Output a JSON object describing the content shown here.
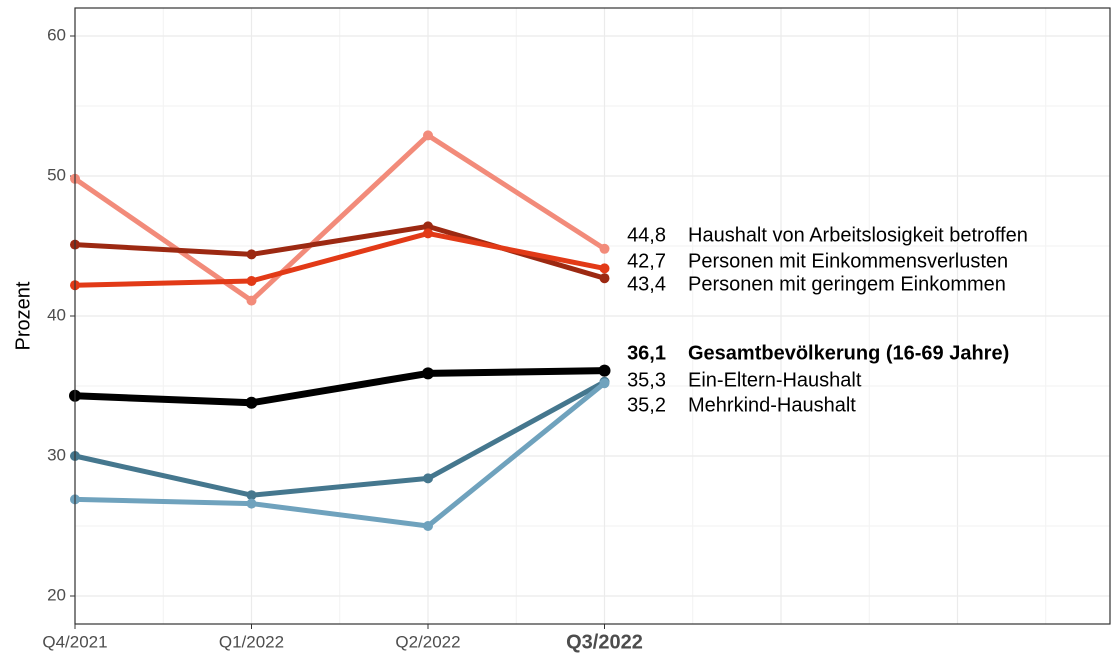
{
  "chart_data": {
    "type": "line",
    "y_label": "Prozent",
    "categories": [
      "Q4/2021",
      "Q1/2022",
      "Q2/2022",
      "Q3/2022"
    ],
    "series": [
      {
        "name": "Haushalt von Arbeitslosigkeit betroffen",
        "color": "#f28b7a",
        "values": [
          49.8,
          41.1,
          52.9,
          44.8
        ],
        "value_labels": [
          null,
          null,
          null,
          "44,8"
        ]
      },
      {
        "name": "Personen mit Einkommensverlusten",
        "color": "#9c2912",
        "values": [
          45.1,
          44.4,
          46.4,
          42.7
        ],
        "value_labels": [
          null,
          null,
          null,
          "42,7"
        ]
      },
      {
        "name": "Personen mit geringem Einkommen",
        "color": "#e23a17",
        "values": [
          42.2,
          42.5,
          45.9,
          43.4
        ],
        "value_labels": [
          null,
          null,
          null,
          "43,4"
        ]
      },
      {
        "name": "Gesamtbevölkerung (16-69 Jahre)",
        "color": "#000000",
        "bold": true,
        "values": [
          34.3,
          33.8,
          35.9,
          36.1
        ],
        "value_labels": [
          null,
          null,
          null,
          "36,1"
        ]
      },
      {
        "name": "Ein-Eltern-Haushalt",
        "color": "#45778e",
        "values": [
          30.0,
          27.2,
          28.4,
          35.3
        ],
        "value_labels": [
          null,
          null,
          null,
          "35,3"
        ]
      },
      {
        "name": "Mehrkind-Haushalt",
        "color": "#6fa2bd",
        "values": [
          26.9,
          26.6,
          25.0,
          35.2
        ],
        "value_labels": [
          null,
          null,
          null,
          "35,2"
        ]
      }
    ],
    "ylim": [
      18,
      62
    ],
    "yticks": [
      20,
      30,
      40,
      50,
      60
    ],
    "grid": true
  }
}
